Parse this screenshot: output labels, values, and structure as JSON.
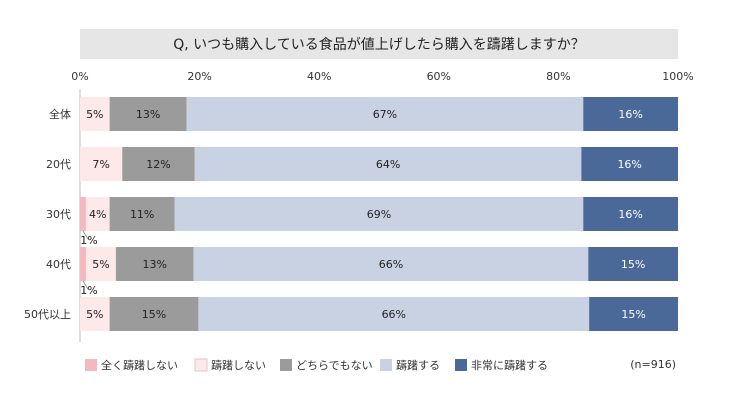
{
  "chart_data": {
    "type": "bar",
    "orientation": "horizontal",
    "stacked": true,
    "percent": true,
    "title": "Q, いつも購入している食品が値上げしたら購入を躊躇しますか？",
    "categories": [
      "全体",
      "20代",
      "30代",
      "40代",
      "50代以上"
    ],
    "xlim": [
      0,
      100
    ],
    "xticks": [
      "0%",
      "20%",
      "40%",
      "60%",
      "80%",
      "100%"
    ],
    "series": [
      {
        "name": "全く躊躇しない",
        "color": "#f4b8be",
        "values": [
          0,
          0,
          1,
          1,
          0
        ],
        "labels": [
          "",
          "",
          "1%",
          "1%",
          ""
        ],
        "label_callout": true
      },
      {
        "name": "躊躇しない",
        "color": "#fde9ea",
        "values": [
          5,
          7,
          4,
          5,
          5
        ],
        "labels": [
          "5%",
          "7%",
          "4%",
          "5%",
          "5%"
        ]
      },
      {
        "name": "どちらでもない",
        "color": "#9b9b9b",
        "values": [
          13,
          12,
          11,
          13,
          15
        ],
        "labels": [
          "13%",
          "12%",
          "11%",
          "13%",
          "15%"
        ]
      },
      {
        "name": "躊躇する",
        "color": "#c9d2e3",
        "values": [
          67,
          64,
          69,
          66,
          66
        ],
        "labels": [
          "67%",
          "64%",
          "69%",
          "66%",
          "66%"
        ]
      },
      {
        "name": "非常に躊躇する",
        "color": "#4a6898",
        "values": [
          16,
          16,
          16,
          15,
          15
        ],
        "labels": [
          "16%",
          "16%",
          "16%",
          "15%",
          "15%"
        ]
      }
    ],
    "legend_position": "bottom",
    "note": "(n=916)"
  }
}
